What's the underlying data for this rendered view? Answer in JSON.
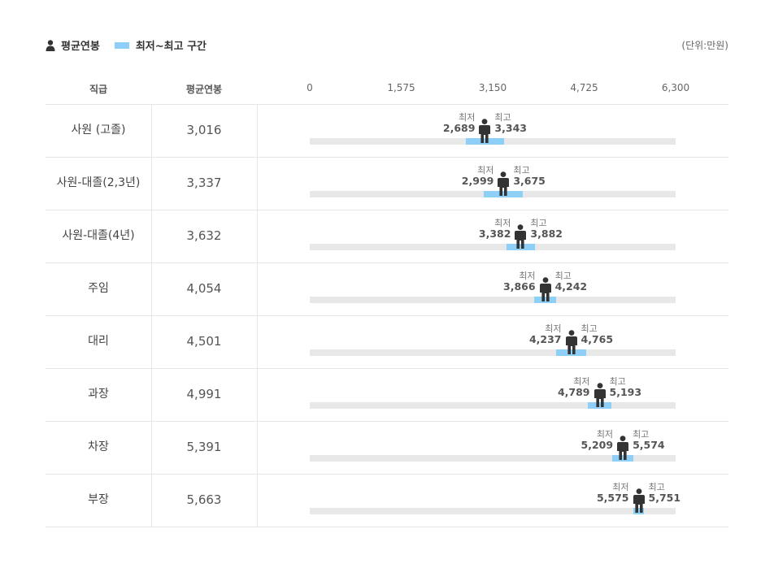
{
  "legend": {
    "avg_label": "평균연봉",
    "range_label": "최저~최고 구간",
    "avg_icon": "person-icon",
    "range_color": "#8ecff8"
  },
  "unit_label": "(단위:만원)",
  "headers": {
    "rank": "직급",
    "avg": "평균연봉"
  },
  "labels": {
    "min": "최저",
    "max": "최고"
  },
  "chart_data": {
    "type": "bar",
    "axis": {
      "min": 0,
      "max": 6300,
      "ticks": [
        "0",
        "1,575",
        "3,150",
        "4,725",
        "6,300"
      ],
      "tick_values": [
        0,
        1575,
        3150,
        4725,
        6300
      ]
    },
    "rows": [
      {
        "rank": "사원 (고졸)",
        "avg": 3016,
        "avg_text": "3,016",
        "min": 2689,
        "min_text": "2,689",
        "max": 3343,
        "max_text": "3,343"
      },
      {
        "rank": "사원-대졸(2,3년)",
        "avg": 3337,
        "avg_text": "3,337",
        "min": 2999,
        "min_text": "2,999",
        "max": 3675,
        "max_text": "3,675"
      },
      {
        "rank": "사원-대졸(4년)",
        "avg": 3632,
        "avg_text": "3,632",
        "min": 3382,
        "min_text": "3,382",
        "max": 3882,
        "max_text": "3,882"
      },
      {
        "rank": "주임",
        "avg": 4054,
        "avg_text": "4,054",
        "min": 3866,
        "min_text": "3,866",
        "max": 4242,
        "max_text": "4,242"
      },
      {
        "rank": "대리",
        "avg": 4501,
        "avg_text": "4,501",
        "min": 4237,
        "min_text": "4,237",
        "max": 4765,
        "max_text": "4,765"
      },
      {
        "rank": "과장",
        "avg": 4991,
        "avg_text": "4,991",
        "min": 4789,
        "min_text": "4,789",
        "max": 5193,
        "max_text": "5,193"
      },
      {
        "rank": "차장",
        "avg": 5391,
        "avg_text": "5,391",
        "min": 5209,
        "min_text": "5,209",
        "max": 5574,
        "max_text": "5,574"
      },
      {
        "rank": "부장",
        "avg": 5663,
        "avg_text": "5,663",
        "min": 5575,
        "min_text": "5,575",
        "max": 5751,
        "max_text": "5,751"
      }
    ]
  }
}
